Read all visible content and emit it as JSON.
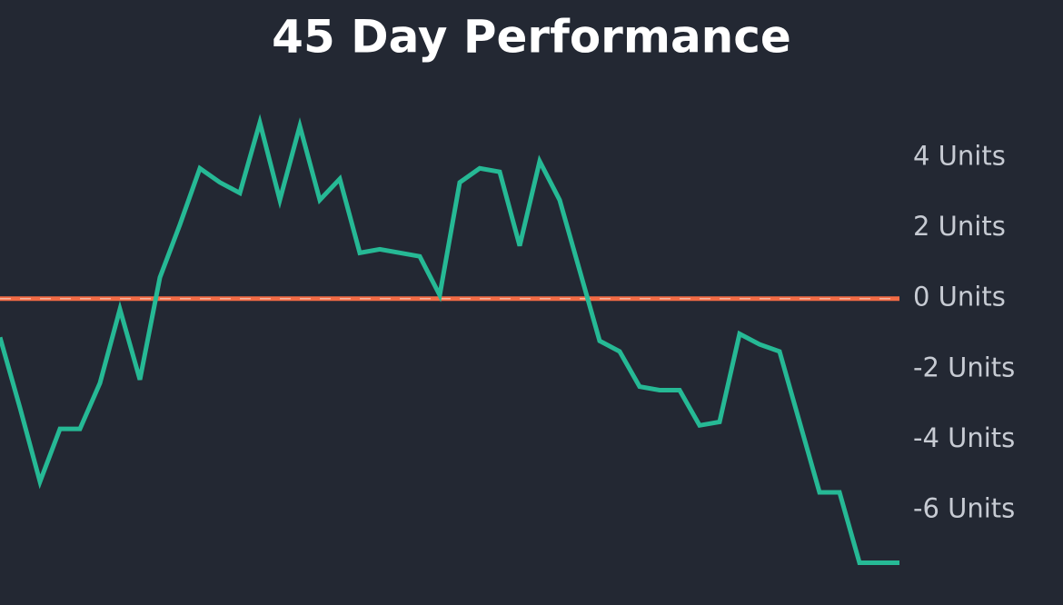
{
  "chart_data": {
    "type": "line",
    "title": "45 Day Performance",
    "categories": [
      null,
      null,
      null,
      null,
      null,
      null,
      null,
      null,
      null,
      null,
      null,
      null,
      null,
      null,
      null,
      null,
      null,
      null,
      null,
      null,
      null,
      null,
      null,
      null,
      null,
      null,
      null,
      null,
      null,
      null,
      null,
      null,
      null,
      null,
      null,
      null,
      null,
      null,
      null,
      null,
      null,
      null,
      null,
      null,
      null,
      null
    ],
    "series": [
      {
        "name": null,
        "color": "#26b995",
        "values": [
          -1.1,
          -3.1,
          -5.2,
          -3.7,
          -3.7,
          -2.4,
          -0.3,
          -2.3,
          0.6,
          2.1,
          3.7,
          3.3,
          3.0,
          5.0,
          2.8,
          4.9,
          2.8,
          3.4,
          1.3,
          1.4,
          1.3,
          1.2,
          0.1,
          3.3,
          3.7,
          3.6,
          1.5,
          3.9,
          2.8,
          0.8,
          -1.2,
          -1.5,
          -2.5,
          -2.6,
          -2.6,
          -3.6,
          -3.5,
          -1.0,
          -1.3,
          -1.5,
          -3.5,
          -5.5,
          -5.5,
          -7.5,
          -7.5,
          -7.5
        ]
      }
    ],
    "ylim": [
      -8.7,
      5.9
    ],
    "yticks": [
      {
        "value": 4,
        "label": "4 Units"
      },
      {
        "value": 2,
        "label": "2 Units"
      },
      {
        "value": 0,
        "label": "0 Units"
      },
      {
        "value": -2,
        "label": "-2 Units"
      },
      {
        "value": -4,
        "label": "-4 Units"
      },
      {
        "value": -6,
        "label": "-6 Units"
      }
    ],
    "reference_line": {
      "value": 0,
      "color": "#f26b45"
    },
    "grid": false
  }
}
